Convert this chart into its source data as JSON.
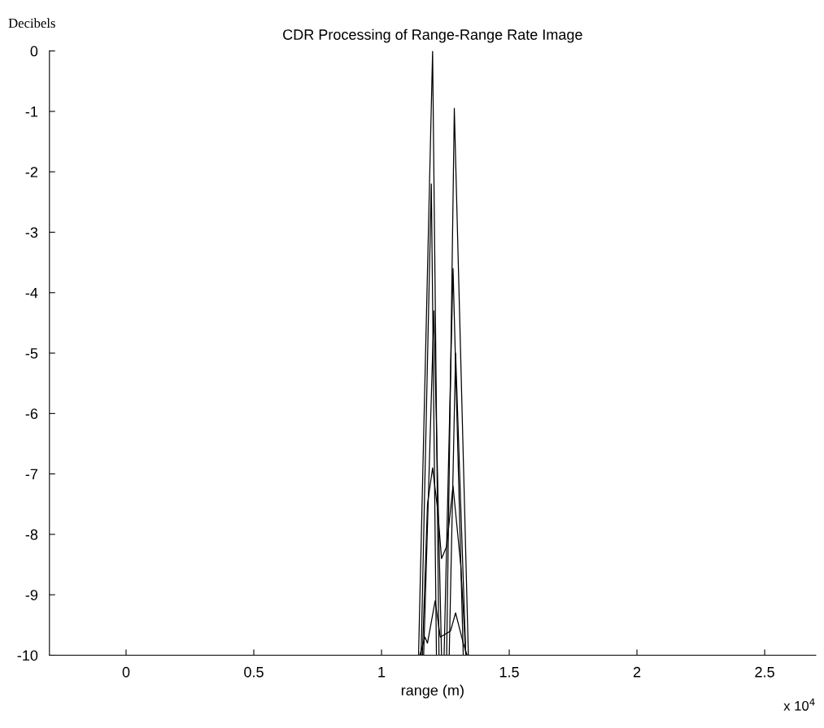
{
  "chart_data": {
    "type": "line",
    "title": "CDR Processing of Range-Range Rate Image",
    "xlabel": "range (m)",
    "ylabel": "Decibels",
    "annotations": [
      "x 10$^{4}$"
    ],
    "xlim": [
      -0.3,
      2.7
    ],
    "ylim": [
      -10,
      0
    ],
    "xticks": [
      0,
      0.5,
      1,
      1.5,
      2,
      2.5
    ],
    "yticks": [
      0,
      -1,
      -2,
      -3,
      -4,
      -5,
      -6,
      -7,
      -8,
      -9,
      -10
    ],
    "grid": false,
    "marker": "none",
    "line_style": "solid",
    "series": [
      {
        "color": "#000000",
        "x": [
          -0.3,
          1.145,
          1.2,
          1.225,
          2.7
        ],
        "values": [
          -10,
          -10,
          0,
          -10,
          -10
        ]
      },
      {
        "color": "#000000",
        "x": [
          -0.3,
          1.155,
          1.195,
          1.215,
          2.7
        ],
        "values": [
          -10,
          -10,
          -2.2,
          -10,
          -10
        ]
      },
      {
        "color": "#000000",
        "x": [
          -0.3,
          1.165,
          1.205,
          1.235,
          2.7
        ],
        "values": [
          -10,
          -10,
          -4.3,
          -10,
          -10
        ]
      },
      {
        "color": "#000000",
        "x": [
          -0.3,
          1.255,
          1.285,
          1.34,
          2.7
        ],
        "values": [
          -10,
          -10,
          -0.95,
          -10,
          -10
        ]
      },
      {
        "color": "#000000",
        "x": [
          -0.3,
          1.245,
          1.28,
          1.32,
          2.7
        ],
        "values": [
          -10,
          -10,
          -3.6,
          -10,
          -10
        ]
      },
      {
        "color": "#000000",
        "x": [
          -0.3,
          1.265,
          1.29,
          1.33,
          2.7
        ],
        "values": [
          -10,
          -10,
          -5,
          -10,
          -10
        ]
      },
      {
        "color": "#000000",
        "x": [
          -0.3,
          1.16,
          1.18,
          1.2,
          1.22,
          1.235,
          1.255,
          1.28,
          1.31,
          1.33,
          2.7
        ],
        "values": [
          -10,
          -10,
          -7.5,
          -6.9,
          -7.6,
          -8.4,
          -8.2,
          -7.2,
          -8.5,
          -10,
          -10
        ]
      },
      {
        "color": "#000000",
        "x": [
          -0.3,
          1.15,
          1.17,
          1.18,
          1.21,
          1.23,
          1.27,
          1.29,
          1.32,
          1.335,
          2.7
        ],
        "values": [
          -10,
          -10,
          -9.7,
          -9.8,
          -9.1,
          -9.7,
          -9.6,
          -9.3,
          -9.8,
          -10,
          -10
        ]
      }
    ]
  }
}
